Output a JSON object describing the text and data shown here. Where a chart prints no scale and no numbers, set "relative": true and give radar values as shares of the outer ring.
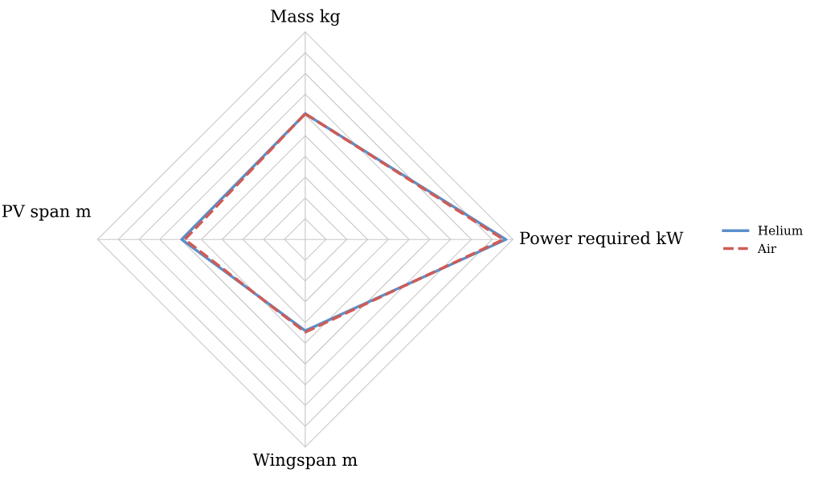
{
  "chart_data": {
    "type": "radar",
    "relative": true,
    "categories": [
      "Mass kg",
      "Power required kW",
      "Wingspan m",
      "PV span m"
    ],
    "series": [
      {
        "name": "Helium",
        "color": "#5b8fc9",
        "line_style": "solid",
        "values": [
          0.606,
          0.966,
          0.44,
          0.595
        ]
      },
      {
        "name": "Air",
        "color": "#cf5b55",
        "line_style": "dashed",
        "values": [
          0.606,
          0.955,
          0.447,
          0.58
        ]
      }
    ],
    "grid": true,
    "legend": "right",
    "marker": "none"
  }
}
